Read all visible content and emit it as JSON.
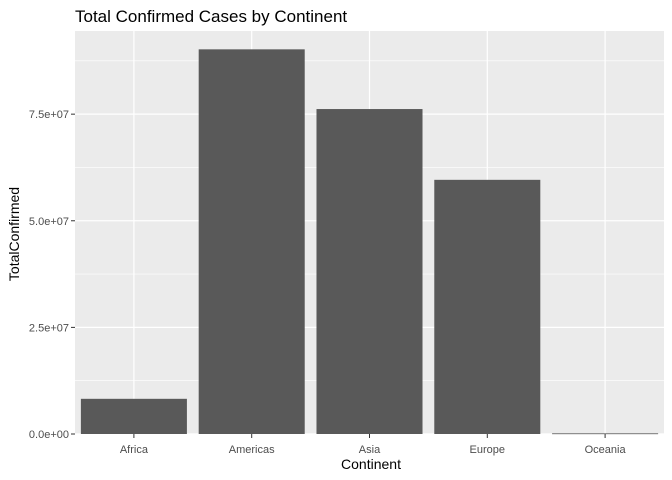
{
  "chart_data": {
    "type": "bar",
    "title": "Total Confirmed Cases by Continent",
    "xlabel": "Continent",
    "ylabel": "TotalConfirmed",
    "categories": [
      "Africa",
      "Americas",
      "Asia",
      "Europe",
      "Oceania"
    ],
    "values": [
      8250000,
      90200000,
      76200000,
      59600000,
      150000
    ],
    "ylim": [
      0,
      94500000
    ],
    "yticks": [
      0,
      25000000,
      50000000,
      75000000
    ],
    "ytick_labels": [
      "0.0e+00",
      "2.5e+07",
      "5.0e+07",
      "7.5e+07"
    ],
    "grid": true,
    "legend": "none",
    "colors": {
      "panel": "#EBEBEB",
      "gridline": "#FFFFFF",
      "bar": "#595959",
      "tick_mark": "#333333"
    }
  }
}
